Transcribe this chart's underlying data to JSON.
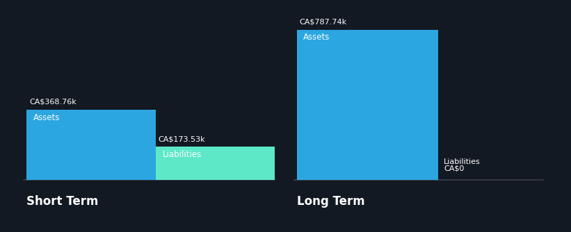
{
  "background_color": "#131922",
  "text_color": "#ffffff",
  "groups": [
    "Short Term",
    "Long Term"
  ],
  "values": {
    "Short Term": {
      "Assets": 368.76,
      "Liabilities": 173.53
    },
    "Long Term": {
      "Assets": 787.74,
      "Liabilities": 0
    }
  },
  "labels": {
    "Short Term": {
      "Assets": "CA$368.76k",
      "Liabilities": "CA$173.53k"
    },
    "Long Term": {
      "Assets": "CA$787.74k",
      "Liabilities": "CA$0"
    }
  },
  "bar_colors": {
    "Assets": "#2ba6e0",
    "Liabilities": "#5de8c8"
  },
  "baseline_color": "#3a3f4a",
  "figsize": [
    8.21,
    3.34
  ],
  "dpi": 100
}
